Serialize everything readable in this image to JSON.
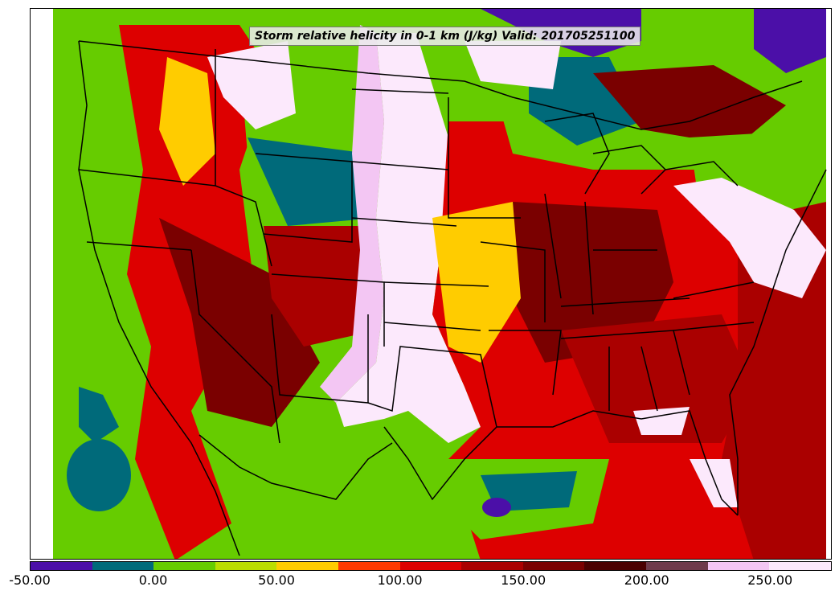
{
  "map": {
    "title": "Storm relative helicity in 0-1 km (J/kg) Valid: 201705251100",
    "region": "Continental United States",
    "field": "storm-relative helicity 0-1 km",
    "valid_time": "201705251100"
  },
  "colorbar": {
    "min": -50,
    "max": 275,
    "interval": 25,
    "colors": [
      "#4b0fa8",
      "#006a7a",
      "#66cc00",
      "#bbdd00",
      "#ffcc00",
      "#ff3a00",
      "#dd0000",
      "#aa0000",
      "#7a0000",
      "#4a0000",
      "#6e3a4a",
      "#f3c6f3",
      "#fce9fc"
    ],
    "tick_labels": [
      "-50.00",
      "0.00",
      "50.00",
      "100.00",
      "150.00",
      "200.00",
      "250.00"
    ],
    "tick_values": [
      -50,
      0,
      50,
      100,
      150,
      200,
      250
    ]
  }
}
